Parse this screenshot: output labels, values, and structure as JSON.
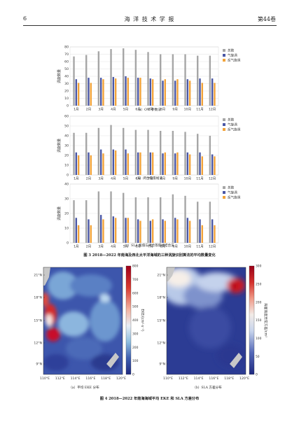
{
  "header": {
    "page_number": "6",
    "journal": "海 洋 技 术 学 报",
    "volume": "第44卷"
  },
  "figure3": {
    "caption": "图 3   2018—2022 年南海及西北太平洋海域的三种涡旋识别算法的平均数量变化",
    "legend": [
      "总数",
      "气旋涡",
      "反气旋涡"
    ],
    "ylabel": "涡旋数量",
    "panels": [
      {
        "caption": "（a）OW 参数法"
      },
      {
        "caption": "（b）闭合等值线法"
      },
      {
        "caption": "（c）SLA 极值与闭合等值线结合法"
      }
    ]
  },
  "chart_data": [
    {
      "type": "bar",
      "categories": [
        "1月",
        "2月",
        "3月",
        "4月",
        "5月",
        "6月",
        "7月",
        "8月",
        "9月",
        "10月",
        "11月",
        "12月"
      ],
      "series": [
        {
          "name": "总数",
          "values": [
            67,
            69,
            74,
            77,
            78,
            76,
            73,
            70,
            70,
            70,
            68,
            68
          ]
        },
        {
          "name": "气旋涡",
          "values": [
            36,
            38,
            38,
            39,
            40,
            38,
            37,
            34,
            34,
            36,
            37,
            37
          ]
        },
        {
          "name": "反气旋涡",
          "values": [
            31,
            31,
            36,
            37,
            38,
            38,
            36,
            36,
            36,
            34,
            31,
            31
          ]
        }
      ],
      "ylabel": "涡旋数量",
      "ylim": [
        0,
        80
      ],
      "yticks": [
        0,
        10,
        20,
        30,
        40,
        50,
        60,
        70,
        80
      ],
      "grid": true,
      "legend": "right"
    },
    {
      "type": "bar",
      "categories": [
        "1月",
        "2月",
        "3月",
        "4月",
        "5月",
        "6月",
        "7月",
        "8月",
        "9月",
        "10月",
        "11月",
        "12月"
      ],
      "series": [
        {
          "name": "总数",
          "values": [
            43,
            43,
            48,
            51,
            48,
            46,
            46,
            45,
            45,
            44,
            42,
            40
          ]
        },
        {
          "name": "气旋涡",
          "values": [
            23,
            23,
            26,
            26,
            26,
            23,
            23,
            22,
            22,
            23,
            23,
            21
          ]
        },
        {
          "name": "反气旋涡",
          "values": [
            20,
            20,
            22,
            25,
            22,
            23,
            23,
            23,
            23,
            21,
            19,
            19
          ]
        }
      ],
      "ylabel": "涡旋数量",
      "ylim": [
        0,
        60
      ],
      "yticks": [
        0,
        10,
        20,
        30,
        40,
        50,
        60
      ],
      "grid": true,
      "legend": "right"
    },
    {
      "type": "bar",
      "categories": [
        "1月",
        "2月",
        "3月",
        "4月",
        "5月",
        "6月",
        "7月",
        "8月",
        "9月",
        "10月",
        "11月",
        "12月"
      ],
      "series": [
        {
          "name": "总数",
          "values": [
            29,
            29,
            35,
            35,
            34,
            31,
            31,
            31,
            33,
            32,
            28,
            28
          ]
        },
        {
          "name": "气旋涡",
          "values": [
            17,
            16,
            19,
            18,
            17,
            16,
            15,
            16,
            17,
            17,
            16,
            16
          ]
        },
        {
          "name": "反气旋涡",
          "values": [
            12,
            12,
            16,
            17,
            17,
            15,
            16,
            15,
            16,
            15,
            12,
            12
          ]
        }
      ],
      "ylabel": "涡旋数量",
      "ylim": [
        0,
        40
      ],
      "yticks": [
        0,
        10,
        20,
        30,
        40
      ],
      "grid": true,
      "legend": "right"
    }
  ],
  "figure4": {
    "caption": "图 4   2018—2022 年南海海域平均 EKE 和 SLA 方差分布",
    "lat_ticks": [
      "21°N",
      "18°N",
      "15°N",
      "12°N",
      "9°N"
    ],
    "lon_ticks": [
      "110°E",
      "112°E",
      "114°E",
      "116°E",
      "118°E",
      "120°E"
    ],
    "map_a": {
      "caption": "（a）平均 EKE 分布",
      "colorbar_label": "EKE/(cm²·s⁻²)",
      "colorbar_ticks": [
        "0",
        "100",
        "200",
        "300",
        "400",
        "500",
        "600",
        "700",
        "800"
      ],
      "colors": {
        "low": "#2b3a8f",
        "mid": "#9ec9e6",
        "high": "#c0001a",
        "land": "#c8c8c8"
      }
    },
    "map_b": {
      "caption": "（b）SLA 方差分布",
      "colorbar_label": "海面高度异常方差/cm²",
      "colorbar_ticks": [
        "0",
        "50",
        "100",
        "150",
        "200",
        "250",
        "300"
      ],
      "colors": {
        "low": "#24308a",
        "mid": "#c9d8ec",
        "high": "#c0001a",
        "land": "#c8c8c8"
      }
    }
  },
  "colors": {
    "total": "#a6a6a6",
    "cyclonic": "#4a57a6",
    "anticyclonic": "#f2a33a"
  }
}
